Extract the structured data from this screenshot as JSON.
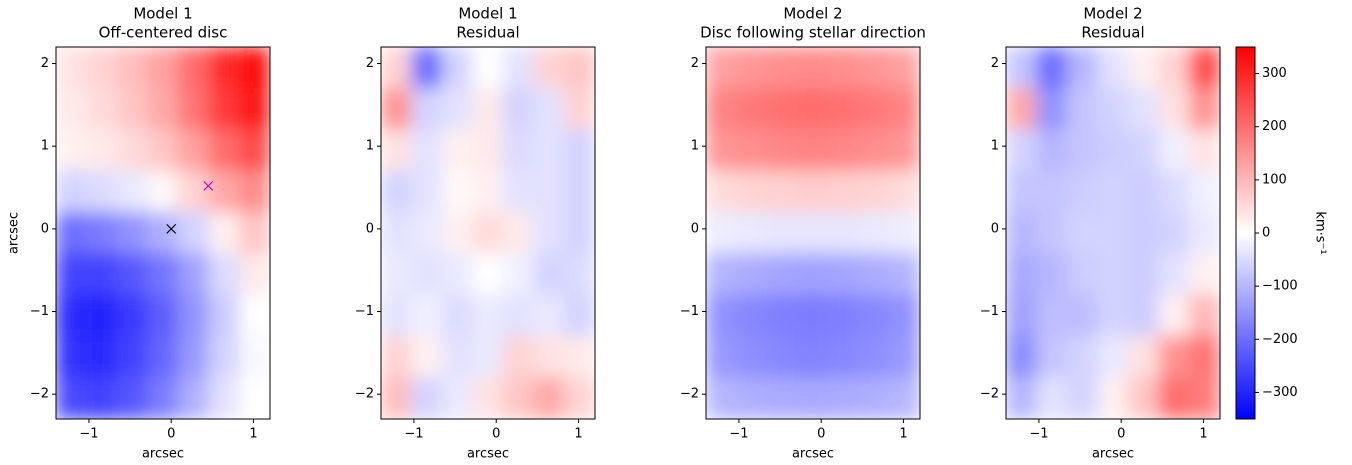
{
  "chart_data": [
    {
      "type": "heatmap",
      "title": [
        "Model 1",
        "Off-centered disc"
      ],
      "xlabel": "arcsec",
      "ylabel": "arcsec",
      "cmap": "bwr",
      "xlim": [
        -1.4,
        1.2
      ],
      "ylim": [
        -2.3,
        2.2
      ],
      "xticks": [
        {
          "value": -1,
          "label": "−1"
        },
        0,
        1
      ],
      "yticks": [
        {
          "value": -2,
          "label": "−2"
        },
        {
          "value": -1,
          "label": "−1"
        },
        0,
        1,
        2
      ],
      "z": [
        [
          40,
          60,
          90,
          130,
          200,
          290,
          340
        ],
        [
          30,
          50,
          80,
          120,
          190,
          270,
          320
        ],
        [
          20,
          30,
          50,
          80,
          130,
          200,
          250
        ],
        [
          -60,
          -50,
          -30,
          10,
          60,
          120,
          160
        ],
        [
          -200,
          -180,
          -150,
          -110,
          -60,
          20,
          80
        ],
        [
          -260,
          -260,
          -230,
          -190,
          -130,
          -50,
          30
        ],
        [
          -290,
          -300,
          -270,
          -220,
          -150,
          -70,
          0
        ],
        [
          -280,
          -290,
          -260,
          -210,
          -140,
          -60,
          -10
        ],
        [
          -250,
          -260,
          -230,
          -180,
          -110,
          -40,
          0
        ]
      ],
      "markers": [
        {
          "x": 0.45,
          "y": 0.52,
          "color": "#bf00bf"
        },
        {
          "x": 0,
          "y": 0,
          "color": "#000000"
        }
      ]
    },
    {
      "type": "heatmap",
      "title": [
        "Model 1",
        "Residual"
      ],
      "xlabel": "arcsec",
      "cmap": "bwr",
      "xlim": [
        -1.4,
        1.2
      ],
      "ylim": [
        -2.3,
        2.2
      ],
      "xticks": [
        {
          "value": -1,
          "label": "−1"
        },
        0,
        1
      ],
      "yticks": [
        {
          "value": -2,
          "label": "−2"
        },
        {
          "value": -1,
          "label": "−1"
        },
        0,
        1,
        2
      ],
      "z": [
        [
          60,
          -200,
          -60,
          0,
          -40,
          60,
          80
        ],
        [
          150,
          -60,
          -40,
          30,
          -60,
          -40,
          60
        ],
        [
          40,
          -40,
          20,
          30,
          -50,
          -40,
          -60
        ],
        [
          -60,
          -40,
          10,
          20,
          -40,
          -40,
          -60
        ],
        [
          -40,
          -30,
          20,
          50,
          30,
          -40,
          -60
        ],
        [
          -30,
          -40,
          -30,
          0,
          -20,
          -60,
          -50
        ],
        [
          -40,
          -20,
          -50,
          -30,
          -40,
          -30,
          -60
        ],
        [
          60,
          20,
          -40,
          -30,
          60,
          40,
          30
        ],
        [
          90,
          -60,
          -30,
          40,
          80,
          120,
          60
        ]
      ]
    },
    {
      "type": "heatmap",
      "title": [
        "Model 2",
        "Disc following stellar direction"
      ],
      "xlabel": "arcsec",
      "cmap": "bwr",
      "xlim": [
        -1.4,
        1.2
      ],
      "ylim": [
        -2.3,
        2.2
      ],
      "xticks": [
        {
          "value": -1,
          "label": "−1"
        },
        0,
        1
      ],
      "yticks": [
        {
          "value": -2,
          "label": "−2"
        },
        {
          "value": -1,
          "label": "−1"
        },
        0,
        1,
        2
      ],
      "z": [
        [
          130,
          145,
          155,
          160,
          155,
          145,
          130
        ],
        [
          170,
          185,
          195,
          200,
          195,
          185,
          170
        ],
        [
          145,
          155,
          165,
          170,
          165,
          155,
          145
        ],
        [
          50,
          60,
          65,
          70,
          65,
          60,
          50
        ],
        [
          -25,
          -30,
          -35,
          -35,
          -35,
          -30,
          -25
        ],
        [
          -105,
          -115,
          -125,
          -130,
          -125,
          -115,
          -105
        ],
        [
          -150,
          -165,
          -175,
          -180,
          -175,
          -165,
          -150
        ],
        [
          -140,
          -155,
          -165,
          -170,
          -165,
          -155,
          -140
        ],
        [
          -100,
          -110,
          -115,
          -120,
          -115,
          -110,
          -100
        ]
      ]
    },
    {
      "type": "heatmap",
      "title": [
        "Model 2",
        "Residual"
      ],
      "xlabel": "arcsec",
      "cmap": "bwr",
      "xlim": [
        -1.4,
        1.2
      ],
      "ylim": [
        -2.3,
        2.2
      ],
      "xticks": [
        {
          "value": -1,
          "label": "−1"
        },
        0,
        1
      ],
      "yticks": [
        {
          "value": -2,
          "label": "−2"
        },
        {
          "value": -1,
          "label": "−1"
        },
        0,
        1,
        2
      ],
      "z": [
        [
          -80,
          -200,
          -100,
          -40,
          20,
          60,
          250
        ],
        [
          120,
          -150,
          -80,
          -60,
          -40,
          40,
          150
        ],
        [
          -60,
          -100,
          -80,
          -70,
          -60,
          -20,
          40
        ],
        [
          -80,
          -80,
          -70,
          -60,
          -70,
          -50,
          -20
        ],
        [
          -100,
          -80,
          -60,
          -60,
          -70,
          -60,
          -30
        ],
        [
          -120,
          -100,
          -70,
          -60,
          -70,
          -40,
          20
        ],
        [
          -130,
          -90,
          -90,
          -60,
          -70,
          20,
          100
        ],
        [
          -160,
          -80,
          -60,
          -30,
          40,
          150,
          190
        ],
        [
          -100,
          -40,
          -60,
          20,
          80,
          200,
          180
        ]
      ]
    },
    {
      "type": "colorbar",
      "label": "km·s⁻¹",
      "cmap": "bwr",
      "zlim": [
        -350,
        350
      ],
      "zticks": [
        {
          "value": -300,
          "label": "−300"
        },
        {
          "value": -200,
          "label": "−200"
        },
        {
          "value": -100,
          "label": "−100"
        },
        0,
        100,
        200,
        300
      ]
    }
  ]
}
